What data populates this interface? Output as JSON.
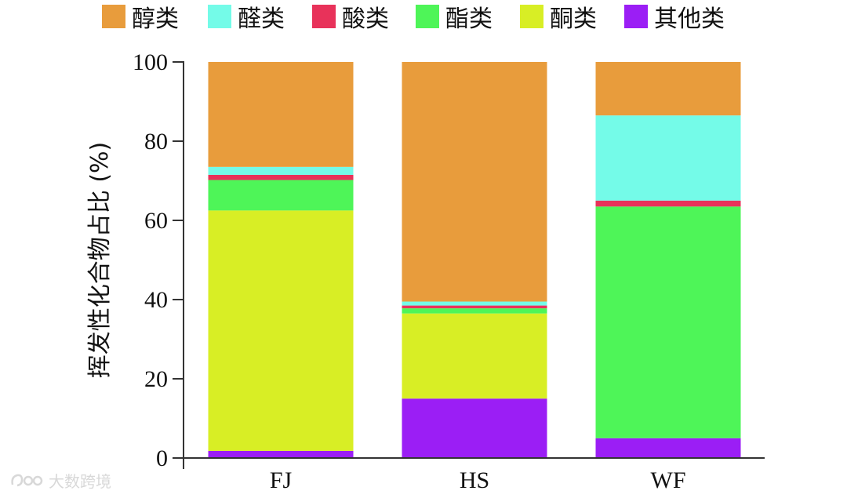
{
  "chart_data": {
    "type": "bar",
    "stacked": true,
    "title": "",
    "xlabel": "",
    "ylabel": "挥发性化合物占比 (%)",
    "ylim": [
      0,
      100
    ],
    "yticks": [
      0,
      20,
      40,
      60,
      80,
      100
    ],
    "grid": false,
    "legend": "top",
    "categories": [
      "FJ",
      "HS",
      "WF"
    ],
    "series": [
      {
        "name": "其他类",
        "color": "#9b1ef5",
        "values": [
          1.8,
          15.0,
          5.0
        ]
      },
      {
        "name": "酮类",
        "color": "#d8ee25",
        "values": [
          60.7,
          21.5,
          0.0
        ]
      },
      {
        "name": "酯类",
        "color": "#4ef558",
        "values": [
          7.7,
          1.3,
          58.5
        ]
      },
      {
        "name": "酸类",
        "color": "#e8325a",
        "values": [
          1.3,
          0.7,
          1.5
        ]
      },
      {
        "name": "醛类",
        "color": "#74fbe8",
        "values": [
          2.0,
          1.0,
          21.5
        ]
      },
      {
        "name": "醇类",
        "color": "#e89c3c",
        "values": [
          26.5,
          60.5,
          13.5
        ]
      }
    ],
    "legend_order": [
      "醇类",
      "醛类",
      "酸类",
      "酯类",
      "酮类",
      "其他类"
    ]
  },
  "watermark": {
    "text": "大数跨境"
  }
}
